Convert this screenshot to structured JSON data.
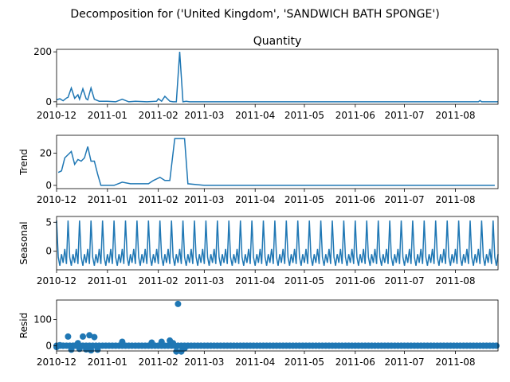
{
  "figure": {
    "suptitle": "Decomposition for ('United Kingdom', 'SANDWICH BATH SPONGE')"
  },
  "colors": {
    "series": "#1f77b4",
    "axis": "#000000",
    "background": "#ffffff"
  },
  "chart_data": [
    {
      "type": "line",
      "title": "Quantity",
      "ylabel": "",
      "xlim": [
        "2010-12-01",
        "2011-08-27"
      ],
      "ylim": [
        -10,
        210
      ],
      "yticks": [
        0,
        200
      ],
      "xticks": [
        "2010-12",
        "2011-01",
        "2011-02",
        "2011-03",
        "2011-04",
        "2011-05",
        "2011-06",
        "2011-07",
        "2011-08"
      ],
      "x": [
        "2010-12-01",
        "2010-12-03",
        "2010-12-05",
        "2010-12-07",
        "2010-12-08",
        "2010-12-10",
        "2010-12-12",
        "2010-12-14",
        "2010-12-15",
        "2010-12-17",
        "2010-12-19",
        "2010-12-20",
        "2010-12-22",
        "2010-12-24",
        "2010-12-27",
        "2011-01-01",
        "2011-01-06",
        "2011-01-10",
        "2011-01-14",
        "2011-01-18",
        "2011-01-25",
        "2011-01-31",
        "2011-02-01",
        "2011-02-03",
        "2011-02-05",
        "2011-02-08",
        "2011-02-10",
        "2011-02-12",
        "2011-02-14",
        "2011-02-16",
        "2011-02-18",
        "2011-02-20",
        "2011-03-01",
        "2011-04-01",
        "2011-05-01",
        "2011-06-01",
        "2011-07-01",
        "2011-08-15",
        "2011-08-16",
        "2011-08-17",
        "2011-08-27"
      ],
      "values": [
        8,
        12,
        4,
        15,
        18,
        55,
        14,
        28,
        10,
        52,
        12,
        8,
        55,
        10,
        2,
        2,
        0,
        10,
        0,
        2,
        0,
        2,
        12,
        2,
        22,
        2,
        0,
        0,
        200,
        0,
        2,
        0,
        0,
        0,
        0,
        0,
        0,
        0,
        5,
        0,
        0
      ]
    },
    {
      "type": "line",
      "title": "",
      "ylabel": "Trend",
      "xlim": [
        "2010-12-01",
        "2011-08-27"
      ],
      "ylim": [
        -2,
        31
      ],
      "yticks": [
        0,
        20
      ],
      "xticks": [
        "2010-12",
        "2011-01",
        "2011-02",
        "2011-03",
        "2011-04",
        "2011-05",
        "2011-06",
        "2011-07",
        "2011-08"
      ],
      "x": [
        "2010-12-02",
        "2010-12-04",
        "2010-12-06",
        "2010-12-08",
        "2010-12-10",
        "2010-12-12",
        "2010-12-14",
        "2010-12-16",
        "2010-12-18",
        "2010-12-20",
        "2010-12-22",
        "2010-12-24",
        "2010-12-26",
        "2010-12-28",
        "2010-12-30",
        "2011-01-05",
        "2011-01-10",
        "2011-01-15",
        "2011-01-20",
        "2011-01-26",
        "2011-01-29",
        "2011-02-02",
        "2011-02-05",
        "2011-02-08",
        "2011-02-11",
        "2011-02-14",
        "2011-02-17",
        "2011-02-19",
        "2011-03-01",
        "2011-04-01",
        "2011-05-01",
        "2011-06-01",
        "2011-07-01",
        "2011-08-01",
        "2011-08-25"
      ],
      "values": [
        8,
        9,
        17,
        19,
        21,
        13,
        16,
        15,
        17,
        24,
        15,
        15,
        7,
        0,
        0,
        0,
        2,
        1,
        1,
        1,
        3,
        5,
        3,
        3,
        29,
        29,
        29,
        1,
        0,
        0,
        0,
        0,
        0,
        0,
        0
      ]
    },
    {
      "type": "line",
      "title": "",
      "ylabel": "Seasonal",
      "xlim": [
        "2010-12-01",
        "2011-08-27"
      ],
      "ylim": [
        -3.2,
        6.0
      ],
      "yticks": [
        0,
        5
      ],
      "ytick_labels": [
        "0",
        "5"
      ],
      "xticks": [
        "2010-12",
        "2011-01",
        "2011-02",
        "2011-03",
        "2011-04",
        "2011-05",
        "2011-06",
        "2011-07",
        "2011-08"
      ],
      "period_days": 7,
      "pattern": [
        5.3,
        -1.0,
        -2.5,
        -0.5,
        -2.0,
        0.4,
        -2.2
      ]
    },
    {
      "type": "scatter",
      "title": "",
      "ylabel": "Resid",
      "xlim": [
        "2010-12-01",
        "2011-08-27"
      ],
      "ylim": [
        -20,
        175
      ],
      "yticks": [
        0,
        100
      ],
      "xticks": [
        "2010-12",
        "2011-01",
        "2011-02",
        "2011-03",
        "2011-04",
        "2011-05",
        "2011-06",
        "2011-07",
        "2011-08"
      ],
      "x": [
        "2010-12-01",
        "2010-12-03",
        "2010-12-05",
        "2010-12-08",
        "2010-12-10",
        "2010-12-12",
        "2010-12-14",
        "2010-12-15",
        "2010-12-17",
        "2010-12-19",
        "2010-12-21",
        "2010-12-22",
        "2010-12-24",
        "2010-12-26",
        "2011-01-10",
        "2011-01-28",
        "2011-02-03",
        "2011-02-08",
        "2011-02-10",
        "2011-02-12",
        "2011-02-13",
        "2011-02-15",
        "2011-02-17"
      ],
      "values": [
        -5,
        2,
        0,
        35,
        -15,
        0,
        10,
        -12,
        35,
        -14,
        40,
        -18,
        33,
        -15,
        15,
        12,
        15,
        20,
        10,
        -22,
        160,
        -22,
        -10
      ],
      "baseline_interval_days": 2,
      "baseline_value": 0
    }
  ]
}
